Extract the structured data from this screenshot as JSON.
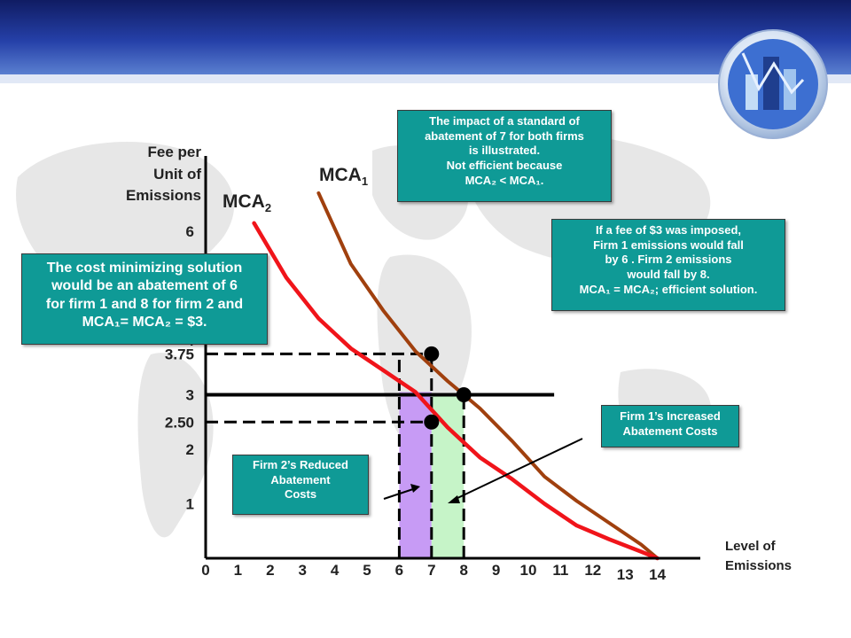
{
  "slide": {
    "callout_standard": [
      "The impact of a standard of",
      "abatement of 7 for both firms",
      "is illustrated.",
      "Not efficient because",
      "MCA₂  < MCA₁."
    ],
    "callout_fee": [
      "If a fee of $3 was imposed,",
      "Firm 1 emissions would fall",
      "by 6 .  Firm 2 emissions",
      "would fall by 8.",
      "MCA₁ = MCA₂; efficient solution."
    ],
    "callout_cost_min": [
      "The cost minimizing solution",
      "would be an abatement of 6",
      "for firm 1 and 8 for firm 2 and",
      "MCA₁= MCA₂ = $3."
    ],
    "callout_firm1": [
      "Firm 1’s Increased",
      "Abatement Costs"
    ],
    "callout_firm2": [
      "Firm 2’s Reduced",
      "Abatement",
      "Costs"
    ]
  },
  "colors": {
    "header": "#1c2f8a",
    "callout": "#0f9a96",
    "mca1": "#a0400e",
    "mca2": "#f0141a",
    "purple_area": "#c79bf5",
    "green_area": "#c6f4c8"
  },
  "chart_data": {
    "type": "line",
    "x_axis": {
      "title_lines": [
        "Level of",
        "Emissions"
      ],
      "range": [
        0,
        14
      ],
      "ticks": [
        "0",
        "1",
        "2",
        "3",
        "4",
        "5",
        "6",
        "7",
        "8",
        "9",
        "10",
        "11",
        "12",
        "13",
        "14"
      ]
    },
    "y_axis": {
      "title_lines": [
        "Fee per",
        "Unit of",
        "Emissions"
      ],
      "ticks": [
        {
          "label": "1",
          "value": 1
        },
        {
          "label": "2",
          "value": 2
        },
        {
          "label": "2.50",
          "value": 2.5
        },
        {
          "label": "3",
          "value": 3
        },
        {
          "label": "3.75",
          "value": 3.75
        },
        {
          "label": "4",
          "value": 4
        },
        {
          "label": "6",
          "value": 6
        }
      ]
    },
    "series": [
      {
        "name": "MCA",
        "subscript": "1",
        "color_key": "mca1",
        "points": [
          [
            3.5,
            6.7
          ],
          [
            4.5,
            5.4
          ],
          [
            5.5,
            4.55
          ],
          [
            6.5,
            3.8
          ],
          [
            7.5,
            3.25
          ],
          [
            8.5,
            2.75
          ],
          [
            9.5,
            2.15
          ],
          [
            10.5,
            1.5
          ],
          [
            11.5,
            1.05
          ],
          [
            12.5,
            0.65
          ],
          [
            13.5,
            0.25
          ],
          [
            14,
            0
          ]
        ]
      },
      {
        "name": "MCA",
        "subscript": "2",
        "color_key": "mca2",
        "points": [
          [
            1.5,
            6.15
          ],
          [
            2.5,
            5.15
          ],
          [
            3.5,
            4.4
          ],
          [
            4.5,
            3.85
          ],
          [
            5.5,
            3.45
          ],
          [
            6.5,
            3.05
          ],
          [
            7.5,
            2.4
          ],
          [
            8.5,
            1.85
          ],
          [
            9.5,
            1.45
          ],
          [
            10.5,
            1.0
          ],
          [
            11.5,
            0.6
          ],
          [
            12.5,
            0.35
          ],
          [
            13.5,
            0.12
          ],
          [
            14,
            0
          ]
        ]
      }
    ],
    "fee_line": {
      "y": 3,
      "x_range": [
        0,
        10.8
      ]
    },
    "dashed_guides": [
      {
        "y": 3.75,
        "x_end": 7
      },
      {
        "y": 2.5,
        "x_end": 7
      },
      {
        "x": 6,
        "y_end": 3.75
      },
      {
        "x": 7,
        "y_end": 3.75
      },
      {
        "x": 8,
        "y_end": 3
      }
    ],
    "points": [
      [
        7,
        3.75
      ],
      [
        8,
        3
      ],
      [
        7,
        2.5
      ]
    ],
    "shaded_regions": [
      {
        "name": "firm2-reduced",
        "x": [
          6,
          7
        ],
        "color_key": "purple_area"
      },
      {
        "name": "firm1-increased",
        "x": [
          7,
          8
        ],
        "color_key": "green_area"
      }
    ]
  }
}
